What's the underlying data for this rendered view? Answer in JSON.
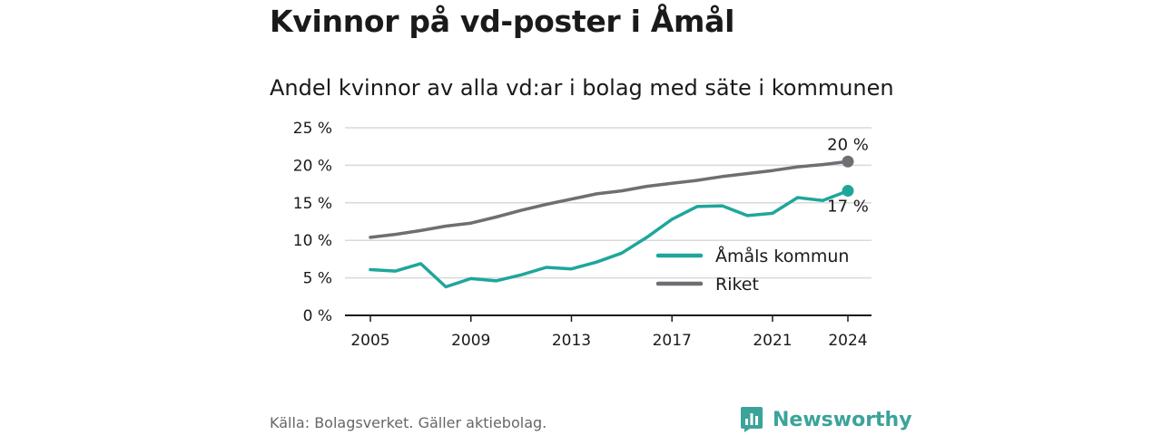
{
  "title": "Kvinnor på vd-poster i Åmål",
  "subtitle": "Andel kvinnor av alla vd:ar i bolag med säte i kommunen",
  "source": "Källa: Bolagsverket. Gäller aktiebolag.",
  "brand": {
    "name": "Newsworthy",
    "icon": "newsworthy-logo-icon"
  },
  "colors": {
    "amal": "#1fa69b",
    "riket": "#6e6e73",
    "grid": "#d9d9d9",
    "axis": "#1a1a1a"
  },
  "chart_data": {
    "type": "line",
    "x": [
      2005,
      2006,
      2007,
      2008,
      2009,
      2010,
      2011,
      2012,
      2013,
      2014,
      2015,
      2016,
      2017,
      2018,
      2019,
      2020,
      2021,
      2022,
      2023,
      2024
    ],
    "x_ticks": [
      2005,
      2009,
      2013,
      2017,
      2021,
      2024
    ],
    "x_tick_labels": [
      "2005",
      "2009",
      "2013",
      "2017",
      "2021",
      "2024"
    ],
    "y_ticks": [
      0,
      5,
      10,
      15,
      20,
      25
    ],
    "y_tick_labels": [
      "0 %",
      "5 %",
      "10 %",
      "15 %",
      "20 %",
      "25 %"
    ],
    "ylim": [
      0,
      25
    ],
    "xlim": [
      2005,
      2024
    ],
    "grid": true,
    "legend_position": "lower-right",
    "series": [
      {
        "name": "Åmåls kommun",
        "color": "#1fa69b",
        "end_label": "17 %",
        "values": [
          6.1,
          5.9,
          6.9,
          3.8,
          4.9,
          4.6,
          5.4,
          6.4,
          6.2,
          7.1,
          8.3,
          10.4,
          12.8,
          14.5,
          14.6,
          13.3,
          13.6,
          15.7,
          15.3,
          16.6
        ]
      },
      {
        "name": "Riket",
        "color": "#6e6e73",
        "end_label": "20 %",
        "values": [
          10.4,
          10.8,
          11.3,
          11.9,
          12.3,
          13.1,
          14.0,
          14.8,
          15.5,
          16.2,
          16.6,
          17.2,
          17.6,
          18.0,
          18.5,
          18.9,
          19.3,
          19.8,
          20.1,
          20.5
        ]
      }
    ]
  }
}
